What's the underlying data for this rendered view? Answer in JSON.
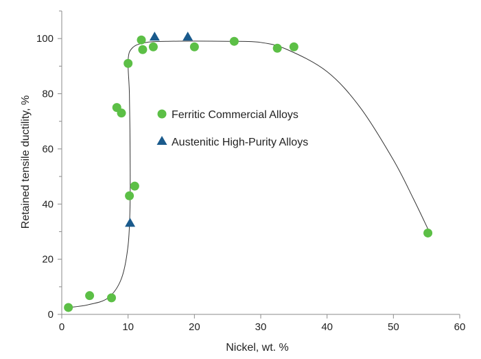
{
  "colors": {
    "ferritic": "#5cbf46",
    "austenitic": "#1a5a8c",
    "axis": "#8a8a8a",
    "curve": "#333333"
  },
  "chart_data": {
    "type": "scatter",
    "title": "",
    "xlabel": "Nickel, wt. %",
    "ylabel": "Retained tensile ductility, %",
    "xlim": [
      0,
      60
    ],
    "ylim": [
      0,
      110
    ],
    "xticks": [
      0,
      10,
      20,
      30,
      40,
      50,
      60
    ],
    "yticks": [
      0,
      20,
      40,
      60,
      80,
      100
    ],
    "grid": false,
    "legend_position": "center",
    "series": [
      {
        "name": "Ferritic Commercial Alloys",
        "marker": "circle",
        "points": [
          [
            1.0,
            2.5
          ],
          [
            4.2,
            6.8
          ],
          [
            7.5,
            6.0
          ],
          [
            8.3,
            75
          ],
          [
            9.0,
            73
          ],
          [
            10.0,
            91
          ],
          [
            10.2,
            43
          ],
          [
            11.0,
            46.5
          ],
          [
            12.0,
            99.5
          ],
          [
            12.2,
            96
          ],
          [
            13.8,
            97
          ],
          [
            20.0,
            97
          ],
          [
            26.0,
            99
          ],
          [
            32.5,
            96.5
          ],
          [
            35.0,
            97
          ],
          [
            55.2,
            29.5
          ]
        ]
      },
      {
        "name": "Austenitic High-Purity Alloys",
        "marker": "triangle",
        "points": [
          [
            10.3,
            33
          ],
          [
            14.0,
            100.5
          ],
          [
            19.0,
            100.5
          ]
        ]
      }
    ],
    "trend_curve": [
      [
        1.0,
        2.5
      ],
      [
        4.0,
        3.5
      ],
      [
        7.0,
        6.0
      ],
      [
        9.0,
        13.0
      ],
      [
        10.0,
        25.0
      ],
      [
        10.3,
        40.0
      ],
      [
        10.3,
        60.0
      ],
      [
        10.2,
        80.0
      ],
      [
        10.0,
        92.0
      ],
      [
        10.6,
        96.5
      ],
      [
        12.5,
        98.5
      ],
      [
        16.0,
        99.0
      ],
      [
        25.0,
        99.0
      ],
      [
        30.0,
        98.6
      ],
      [
        34.0,
        96.0
      ],
      [
        40.0,
        88.0
      ],
      [
        45.0,
        75.0
      ],
      [
        50.0,
        56.0
      ],
      [
        53.0,
        42.0
      ],
      [
        55.2,
        31.0
      ]
    ]
  }
}
